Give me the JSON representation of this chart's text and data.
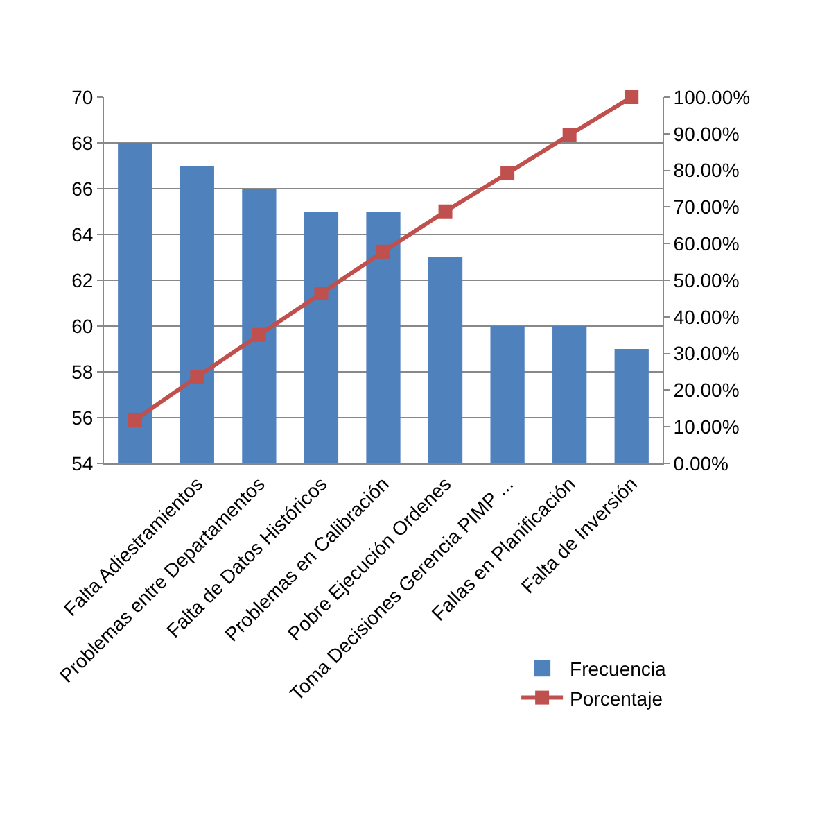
{
  "chart_data": {
    "type": "bar",
    "categories": [
      null,
      "Falta Adiestramientos",
      "Problemas entre Departamentos",
      "Falta de Datos Históricos",
      "Problemas en Calibración",
      "Pobre Ejecución Ordenes",
      "Toma Decisiones Gerencia PIMP ...",
      "Fallas en Planificación",
      "Falta de Inversión"
    ],
    "series": [
      {
        "name": "Frecuencia",
        "color": "#4f81bd",
        "values": [
          68,
          67,
          66,
          65,
          65,
          63,
          60,
          60,
          59
        ]
      },
      {
        "name": "Porcentaje",
        "type": "line",
        "axis": "y2",
        "color": "#c0504d",
        "marker": "square",
        "values": [
          11.9,
          23.6,
          35.1,
          46.4,
          57.8,
          68.8,
          79.2,
          89.7,
          100
        ]
      }
    ],
    "ylim": [
      54,
      70
    ],
    "yticks": [
      54,
      56,
      58,
      60,
      62,
      64,
      66,
      68,
      70
    ],
    "y2lim": [
      0,
      100
    ],
    "y2ticks": [
      {
        "value": 0,
        "label": "0.00%"
      },
      {
        "value": 10,
        "label": "10.00%"
      },
      {
        "value": 20,
        "label": "20.00%"
      },
      {
        "value": 30,
        "label": "30.00%"
      },
      {
        "value": 40,
        "label": "40.00%"
      },
      {
        "value": 50,
        "label": "50.00%"
      },
      {
        "value": 60,
        "label": "60.00%"
      },
      {
        "value": 70,
        "label": "70.00%"
      },
      {
        "value": 80,
        "label": "80.00%"
      },
      {
        "value": 90,
        "label": "90.00%"
      },
      {
        "value": 100,
        "label": "100.00%"
      }
    ],
    "grid": "y",
    "legend": "bottom right"
  }
}
